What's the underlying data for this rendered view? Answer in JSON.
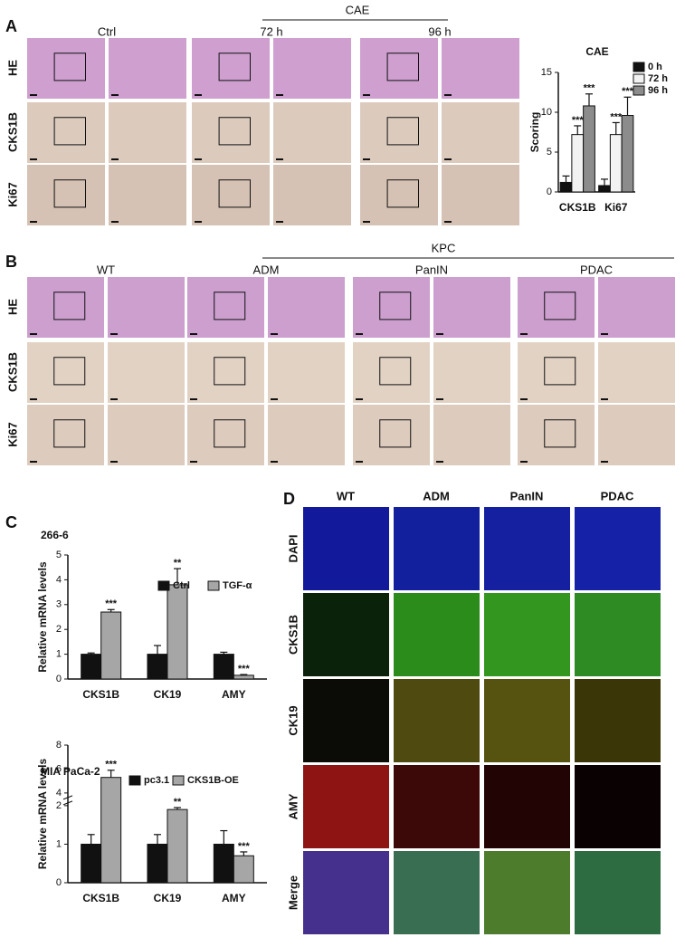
{
  "panels": {
    "A": {
      "label": "A",
      "group_header": "CAE",
      "columns": [
        "Ctrl",
        "72 h",
        "96 h"
      ],
      "rows": [
        "HE",
        "CKS1B",
        "Ki67"
      ]
    },
    "B": {
      "label": "B",
      "group_header": "KPC",
      "columns": [
        "WT",
        "ADM",
        "PanIN",
        "PDAC"
      ],
      "rows": [
        "HE",
        "CKS1B",
        "Ki67"
      ]
    },
    "C": {
      "label": "C"
    },
    "D": {
      "label": "D",
      "columns": [
        "WT",
        "ADM",
        "PanIN",
        "PDAC"
      ],
      "rows": [
        "DAPI",
        "CKS1B",
        "CK19",
        "AMY",
        "Merge"
      ],
      "row_colors": [
        "#2a2ad0",
        "#2cc81e",
        "#d8d81a",
        "#e01818",
        "#111111"
      ]
    }
  },
  "chart_data": [
    {
      "type": "bar",
      "title": "CAE",
      "ylabel": "Scoring",
      "categories": [
        "CKS1B",
        "Ki67"
      ],
      "series": [
        {
          "name": "0 h",
          "color": "#111111",
          "values": [
            1.2,
            0.8
          ],
          "errors": [
            0.8,
            0.8
          ],
          "sig": [
            null,
            null
          ]
        },
        {
          "name": "72 h",
          "color": "#f2f2f2",
          "values": [
            7.2,
            7.2
          ],
          "errors": [
            1.1,
            1.5
          ],
          "sig": [
            "***",
            "***"
          ]
        },
        {
          "name": "96 h",
          "color": "#8c8c8c",
          "values": [
            10.8,
            9.6
          ],
          "errors": [
            1.5,
            2.3
          ],
          "sig": [
            "***",
            "***"
          ]
        }
      ],
      "ylim": [
        0,
        15
      ],
      "yticks": [
        0,
        5,
        10,
        15
      ]
    },
    {
      "type": "bar",
      "title": "266-6",
      "ylabel": "Relative mRNA levels",
      "categories": [
        "CKS1B",
        "CK19",
        "AMY"
      ],
      "series": [
        {
          "name": "Ctrl",
          "color": "#111111",
          "values": [
            1,
            1,
            1
          ],
          "errors": [
            0.05,
            0.35,
            0.08
          ],
          "sig": [
            null,
            null,
            null
          ]
        },
        {
          "name": "TGF-α",
          "color": "#a6a6a6",
          "values": [
            2.7,
            3.8,
            0.15
          ],
          "errors": [
            0.1,
            0.65,
            0.03
          ],
          "sig": [
            "***",
            "**",
            "***"
          ]
        }
      ],
      "ylim": [
        0,
        5
      ],
      "yticks": [
        0,
        1,
        2,
        3,
        4,
        5
      ]
    },
    {
      "type": "bar",
      "title": "MIA PaCa-2",
      "ylabel": "Relative mRNA levels",
      "categories": [
        "CKS1B",
        "CK19",
        "AMY"
      ],
      "series": [
        {
          "name": "pc3.1",
          "color": "#111111",
          "values": [
            1,
            1,
            1
          ],
          "errors": [
            0.25,
            0.25,
            0.35
          ],
          "sig": [
            null,
            null,
            null
          ]
        },
        {
          "name": "CKS1B-OE",
          "color": "#a6a6a6",
          "values": [
            5.3,
            1.9,
            0.7
          ],
          "errors": [
            0.6,
            0.05,
            0.1
          ],
          "sig": [
            "***",
            "**",
            "***"
          ]
        }
      ],
      "ylim": [
        0,
        8
      ],
      "yticks": [
        0,
        1,
        2,
        4,
        6,
        8
      ],
      "axis_break": [
        2,
        4
      ]
    }
  ]
}
